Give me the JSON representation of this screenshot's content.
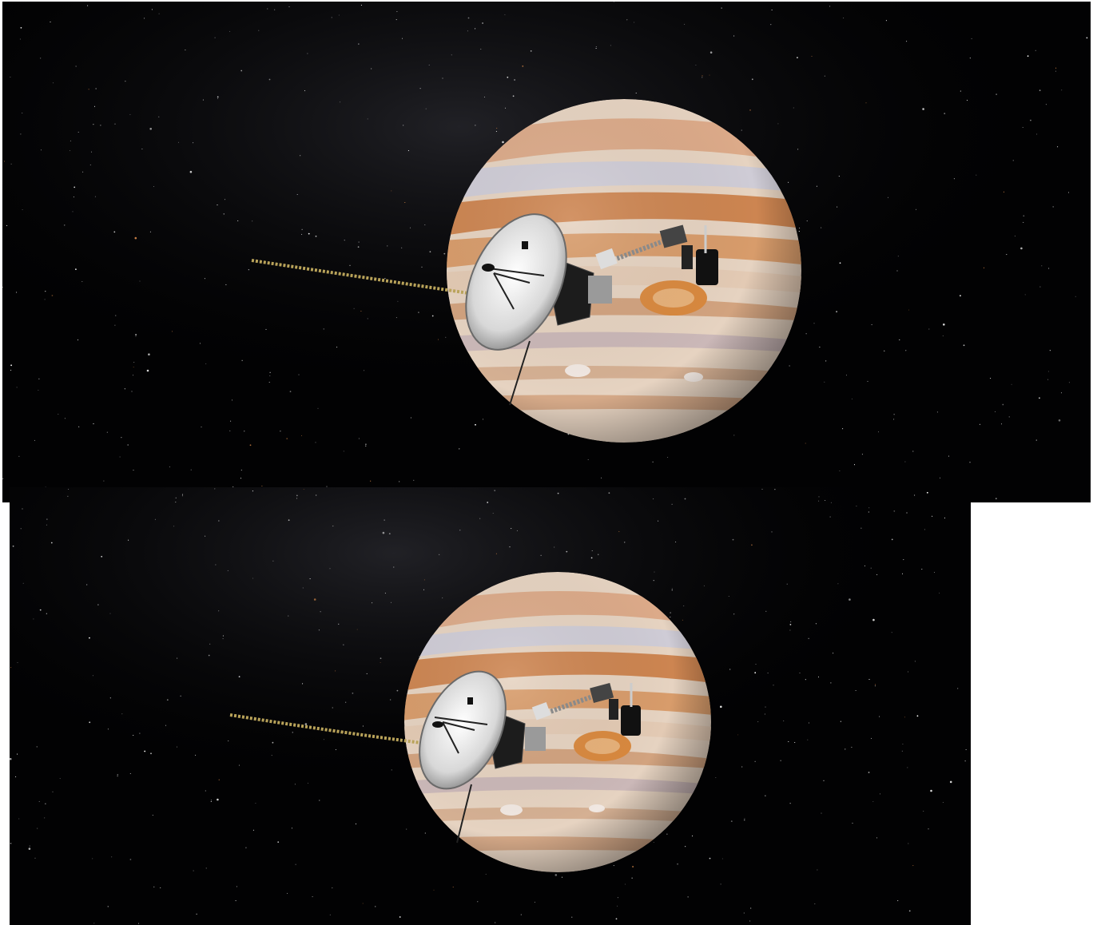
{
  "images": [
    {
      "id": "top",
      "subject": "spacecraft-near-planet",
      "colors": {
        "space": "#020203",
        "milkyway": "#2a2a30",
        "planet_base": "#e9d5c2",
        "planet_band": "#c8773d",
        "storm": "#d9893f",
        "dish": "#e8e8e8",
        "boom": "#b9a35a"
      }
    },
    {
      "id": "bottom",
      "subject": "spacecraft-near-planet",
      "colors": {
        "space": "#020203",
        "milkyway": "#2a2a30",
        "planet_base": "#e9d5c2",
        "planet_band": "#c8773d",
        "storm": "#d9893f",
        "dish": "#e8e8e8",
        "boom": "#b9a35a"
      }
    }
  ]
}
